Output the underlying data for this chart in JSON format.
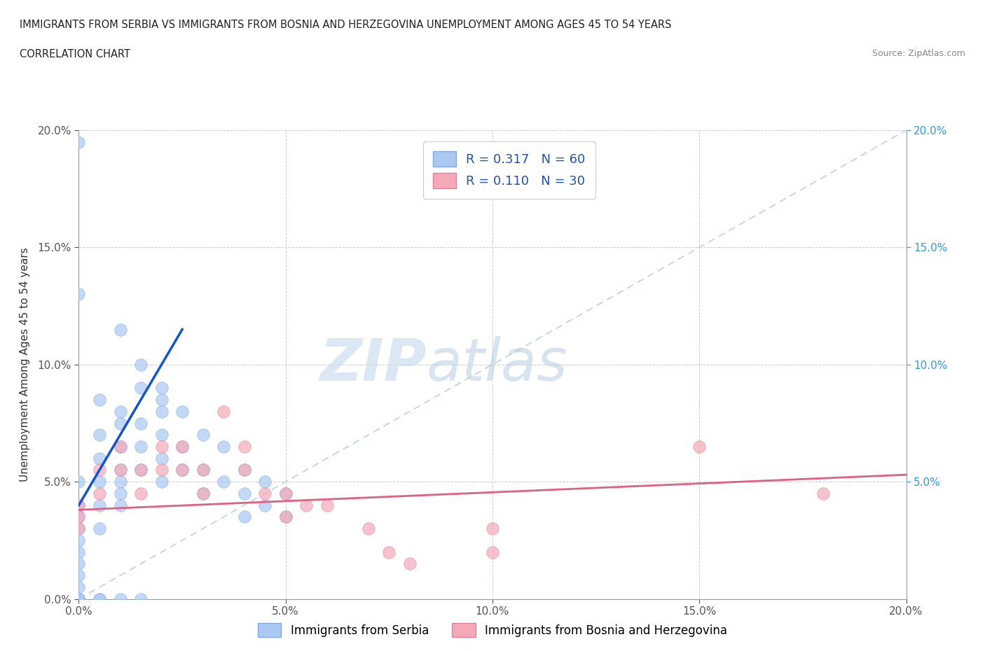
{
  "title_line1": "IMMIGRANTS FROM SERBIA VS IMMIGRANTS FROM BOSNIA AND HERZEGOVINA UNEMPLOYMENT AMONG AGES 45 TO 54 YEARS",
  "title_line2": "CORRELATION CHART",
  "source": "Source: ZipAtlas.com",
  "ylabel": "Unemployment Among Ages 45 to 54 years",
  "xticklabels": [
    "0.0%",
    "5.0%",
    "10.0%",
    "15.0%",
    "20.0%"
  ],
  "yticklabels": [
    "0.0%",
    "5.0%",
    "10.0%",
    "15.0%",
    "20.0%"
  ],
  "right_yticklabels": [
    "5.0%",
    "10.0%",
    "15.0%",
    "20.0%"
  ],
  "xticks": [
    0,
    0.05,
    0.1,
    0.15,
    0.2
  ],
  "yticks": [
    0,
    0.05,
    0.1,
    0.15,
    0.2
  ],
  "xlim": [
    0,
    0.2
  ],
  "ylim": [
    0,
    0.2
  ],
  "serbia_color": "#aac8f0",
  "bosnia_color": "#f5a8b8",
  "serbia_edge": "#80aae0",
  "bosnia_edge": "#e08098",
  "serbia_line_color": "#1155cc",
  "bosnia_line_color": "#e06080",
  "diag_line_color": "#b8cce4",
  "R_serbia": 0.317,
  "N_serbia": 60,
  "R_bosnia": 0.11,
  "N_bosnia": 30,
  "watermark_zip": "ZIP",
  "watermark_atlas": "atlas",
  "watermark_color_zip": "#c8d8ec",
  "watermark_color_atlas": "#b0c8e0",
  "legend_label_serbia": "Immigrants from Serbia",
  "legend_label_bosnia": "Immigrants from Bosnia and Herzegovina",
  "serbia_x": [
    0.0,
    0.0,
    0.0,
    0.0,
    0.0,
    0.0,
    0.0,
    0.0,
    0.0,
    0.0,
    0.005,
    0.005,
    0.005,
    0.005,
    0.005,
    0.005,
    0.01,
    0.01,
    0.01,
    0.01,
    0.01,
    0.01,
    0.01,
    0.015,
    0.015,
    0.015,
    0.015,
    0.02,
    0.02,
    0.02,
    0.02,
    0.025,
    0.025,
    0.025,
    0.03,
    0.03,
    0.03,
    0.035,
    0.035,
    0.04,
    0.04,
    0.04,
    0.045,
    0.045,
    0.05,
    0.05,
    0.01,
    0.015,
    0.02,
    0.02,
    0.0,
    0.005,
    0.01,
    0.015,
    0.0,
    0.005,
    0.0,
    0.0,
    0.0,
    0.0
  ],
  "serbia_y": [
    0.195,
    0.05,
    0.04,
    0.035,
    0.03,
    0.025,
    0.02,
    0.015,
    0.01,
    0.005,
    0.085,
    0.07,
    0.06,
    0.05,
    0.04,
    0.03,
    0.08,
    0.075,
    0.065,
    0.055,
    0.05,
    0.045,
    0.04,
    0.09,
    0.075,
    0.065,
    0.055,
    0.085,
    0.07,
    0.06,
    0.05,
    0.08,
    0.065,
    0.055,
    0.07,
    0.055,
    0.045,
    0.065,
    0.05,
    0.055,
    0.045,
    0.035,
    0.05,
    0.04,
    0.045,
    0.035,
    0.115,
    0.1,
    0.09,
    0.08,
    0.0,
    0.0,
    0.0,
    0.0,
    0.13,
    0.0,
    0.0,
    0.0,
    0.0,
    0.0
  ],
  "bosnia_x": [
    0.0,
    0.0,
    0.0,
    0.005,
    0.005,
    0.01,
    0.01,
    0.015,
    0.015,
    0.02,
    0.02,
    0.025,
    0.025,
    0.03,
    0.03,
    0.035,
    0.04,
    0.04,
    0.045,
    0.05,
    0.05,
    0.055,
    0.06,
    0.07,
    0.075,
    0.08,
    0.1,
    0.1,
    0.15,
    0.18
  ],
  "bosnia_y": [
    0.04,
    0.035,
    0.03,
    0.055,
    0.045,
    0.065,
    0.055,
    0.055,
    0.045,
    0.065,
    0.055,
    0.065,
    0.055,
    0.055,
    0.045,
    0.08,
    0.065,
    0.055,
    0.045,
    0.045,
    0.035,
    0.04,
    0.04,
    0.03,
    0.02,
    0.015,
    0.03,
    0.02,
    0.065,
    0.045
  ],
  "serbia_line_x": [
    0.0,
    0.025
  ],
  "serbia_line_y": [
    0.04,
    0.115
  ],
  "bosnia_line_x": [
    0.0,
    0.2
  ],
  "bosnia_line_y": [
    0.038,
    0.053
  ]
}
